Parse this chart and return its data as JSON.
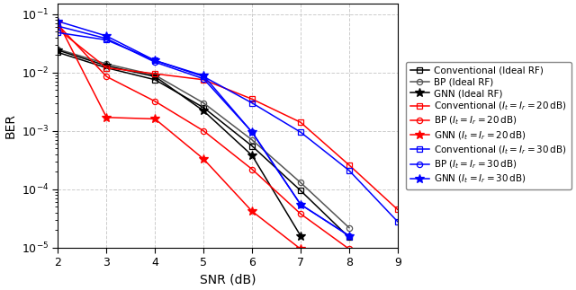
{
  "snr": [
    2,
    3,
    4,
    5,
    6,
    7,
    8,
    9
  ],
  "series": [
    {
      "label": "Conventional (Ideal RF)",
      "color": "#000000",
      "marker": "s",
      "markersize": 4.5,
      "linewidth": 1.1,
      "markerfilled": false,
      "ber": [
        0.022,
        0.012,
        0.0075,
        0.0025,
        0.00055,
        9.5e-05,
        1.5e-05,
        null
      ]
    },
    {
      "label": "BP (Ideal RF)",
      "color": "#555555",
      "marker": "o",
      "markersize": 4.5,
      "linewidth": 1.1,
      "markerfilled": false,
      "ber": [
        0.025,
        0.014,
        0.009,
        0.003,
        0.0007,
        0.00013,
        2.2e-05,
        null
      ]
    },
    {
      "label": "GNN (Ideal RF)",
      "color": "#000000",
      "marker": "*",
      "markersize": 7,
      "linewidth": 1.1,
      "markerfilled": true,
      "ber": [
        0.024,
        0.013,
        0.0085,
        0.0022,
        0.00038,
        1.6e-05,
        null,
        null
      ]
    },
    {
      "label": "Conventional ($I_t = I_r = 20\\,\\mathrm{dB}$)",
      "color": "#ff0000",
      "marker": "s",
      "markersize": 4.5,
      "linewidth": 1.1,
      "markerfilled": false,
      "ber": [
        0.055,
        0.012,
        0.0095,
        0.0075,
        0.0035,
        0.0014,
        0.00026,
        4.5e-05
      ]
    },
    {
      "label": "BP ($I_t = I_r = 20\\,\\mathrm{dB}$)",
      "color": "#ff0000",
      "marker": "o",
      "markersize": 4.5,
      "linewidth": 1.1,
      "markerfilled": false,
      "ber": [
        0.065,
        0.0085,
        0.0032,
        0.001,
        0.00022,
        3.8e-05,
        9.5e-06,
        null
      ]
    },
    {
      "label": "GNN ($I_t = I_r = 20\\,\\mathrm{dB}$)",
      "color": "#ff0000",
      "marker": "*",
      "markersize": 7,
      "linewidth": 1.1,
      "markerfilled": true,
      "ber": [
        0.072,
        0.0017,
        0.0016,
        0.00033,
        4.2e-05,
        9.5e-06,
        null,
        null
      ]
    },
    {
      "label": "Conventional ($I_t = I_r = 30\\,\\mathrm{dB}$)",
      "color": "#0000ff",
      "marker": "s",
      "markersize": 4.5,
      "linewidth": 1.1,
      "markerfilled": false,
      "ber": [
        0.048,
        0.036,
        0.016,
        0.0085,
        0.003,
        0.00095,
        0.00021,
        2.8e-05
      ]
    },
    {
      "label": "BP ($I_t = I_r = 30\\,\\mathrm{dB}$)",
      "color": "#0000ff",
      "marker": "o",
      "markersize": 4.5,
      "linewidth": 1.1,
      "markerfilled": false,
      "ber": [
        0.062,
        0.038,
        0.015,
        0.0078,
        0.00095,
        5.5e-05,
        1.6e-05,
        null
      ]
    },
    {
      "label": "GNN ($I_t = I_r = 30\\,\\mathrm{dB}$)",
      "color": "#0000ff",
      "marker": "*",
      "markersize": 7,
      "linewidth": 1.1,
      "markerfilled": true,
      "ber": [
        0.075,
        0.042,
        0.016,
        0.0088,
        0.00095,
        5.5e-05,
        1.6e-05,
        null
      ]
    }
  ],
  "xlabel": "SNR (dB)",
  "ylabel": "BER",
  "xlim": [
    2,
    9
  ],
  "ylim": [
    1e-05,
    0.15
  ],
  "grid_color": "#cccccc",
  "background_color": "#ffffff",
  "legend_fontsize": 7.5,
  "axis_fontsize": 10,
  "tick_fontsize": 9
}
